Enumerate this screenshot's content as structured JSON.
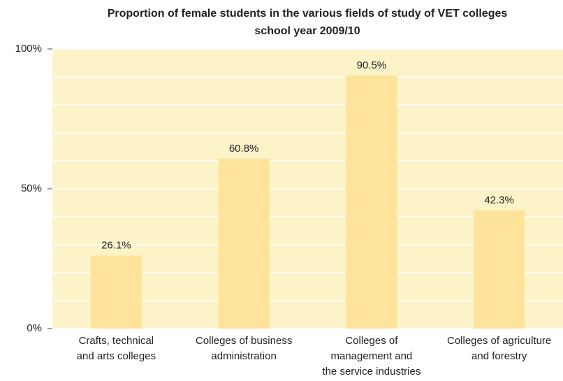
{
  "chart_data": {
    "type": "bar",
    "title": "Proportion of female students in the various fields of study of VET colleges",
    "subtitle": "school year 2009/10",
    "categories": [
      "Crafts, technical\nand arts colleges",
      "Colleges of business\nadministration",
      "Colleges of\nmanagement and\nthe service industries",
      "Colleges of agriculture\nand forestry"
    ],
    "values": [
      26.1,
      60.8,
      90.5,
      42.3
    ],
    "value_labels": [
      "26.1%",
      "60.8%",
      "90.5%",
      "42.3%"
    ],
    "color": "#fde49a",
    "ylim": [
      0,
      100
    ],
    "yticks": [
      {
        "value": 0,
        "label": "0%"
      },
      {
        "value": 50,
        "label": "50%"
      },
      {
        "value": 100,
        "label": "100%"
      }
    ],
    "minor_yticks": [
      10,
      20,
      30,
      40,
      60,
      70,
      80,
      90
    ],
    "grid": true
  }
}
